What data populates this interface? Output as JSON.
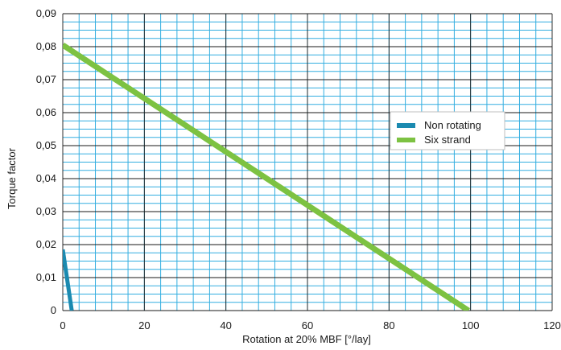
{
  "chart_data": {
    "type": "line",
    "xlabel": "Rotation at 20% MBF [°/lay]",
    "ylabel": "Torque factor",
    "xlim": [
      0,
      120
    ],
    "ylim": [
      0,
      0.09
    ],
    "x_ticks": [
      0,
      20,
      40,
      60,
      80,
      100,
      120
    ],
    "x_tick_labels": [
      "0",
      "20",
      "40",
      "60",
      "80",
      "100",
      "120"
    ],
    "y_ticks": [
      0,
      0.01,
      0.02,
      0.03,
      0.04,
      0.05,
      0.06,
      0.07,
      0.08,
      0.09
    ],
    "y_tick_labels": [
      "0",
      "0,01",
      "0,02",
      "0,03",
      "0,04",
      "0,05",
      "0,06",
      "0,07",
      "0,08",
      "0,09"
    ],
    "minor_grid": {
      "x_step": 4,
      "y_step": 0.0025
    },
    "grid": true,
    "legend_position": "right",
    "series": [
      {
        "name": "Non rotating",
        "color": "#1B8AB0",
        "x": [
          0,
          2.2
        ],
        "y": [
          0.0185,
          0
        ]
      },
      {
        "name": "Six strand",
        "color": "#7DC242",
        "x": [
          0,
          99.5
        ],
        "y": [
          0.0805,
          0
        ]
      }
    ],
    "colors": {
      "major_grid": "#1a1a1a",
      "minor_grid": "#33AEE0"
    }
  }
}
